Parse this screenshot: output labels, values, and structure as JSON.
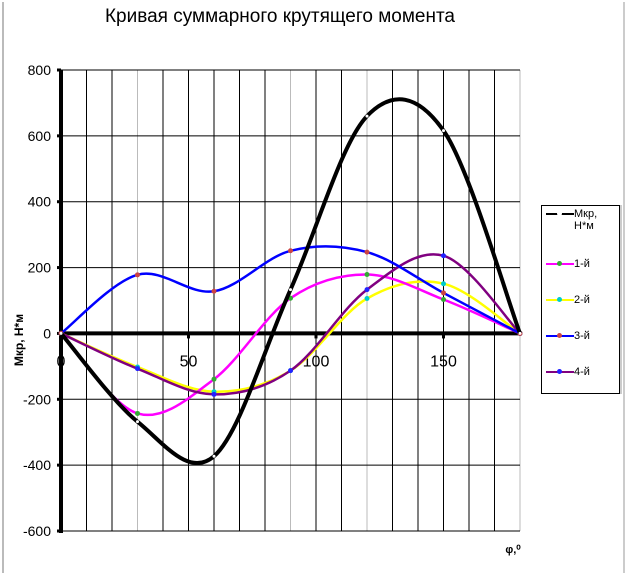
{
  "chart_data": {
    "type": "line",
    "title": "Кривая суммарного крутящего момента",
    "xlabel": "φ,⁰",
    "ylabel": "Мкр, Н*м",
    "xlim": [
      0,
      180
    ],
    "ylim": [
      -600,
      800
    ],
    "x_ticks": [
      0,
      50,
      100,
      150
    ],
    "y_ticks": [
      -600,
      -400,
      -200,
      0,
      200,
      400,
      600,
      800
    ],
    "grid": true,
    "legend_position": "right",
    "x": [
      0,
      30,
      60,
      90,
      120,
      150,
      180
    ],
    "series": [
      {
        "name": "Мкр, Н*м",
        "color": "#000000",
        "marker_color": "#ffffff",
        "values": [
          0,
          -268,
          -373,
          133,
          660,
          616,
          0
        ]
      },
      {
        "name": "1-й",
        "color": "#ff00ff",
        "marker_color": "#33aa33",
        "values": [
          0,
          -243,
          -139,
          107,
          179,
          103,
          0
        ]
      },
      {
        "name": "2-й",
        "color": "#ffff00",
        "marker_color": "#00cccc",
        "values": [
          0,
          -102,
          -177,
          -113,
          106,
          151,
          0
        ]
      },
      {
        "name": "3-й",
        "color": "#0000ff",
        "marker_color": "#cc4444",
        "values": [
          0,
          178,
          128,
          251,
          247,
          123,
          0
        ]
      },
      {
        "name": "4-й",
        "color": "#800080",
        "marker_color": "#2222ff",
        "values": [
          0,
          -107,
          -185,
          -113,
          133,
          236,
          0
        ]
      }
    ]
  }
}
